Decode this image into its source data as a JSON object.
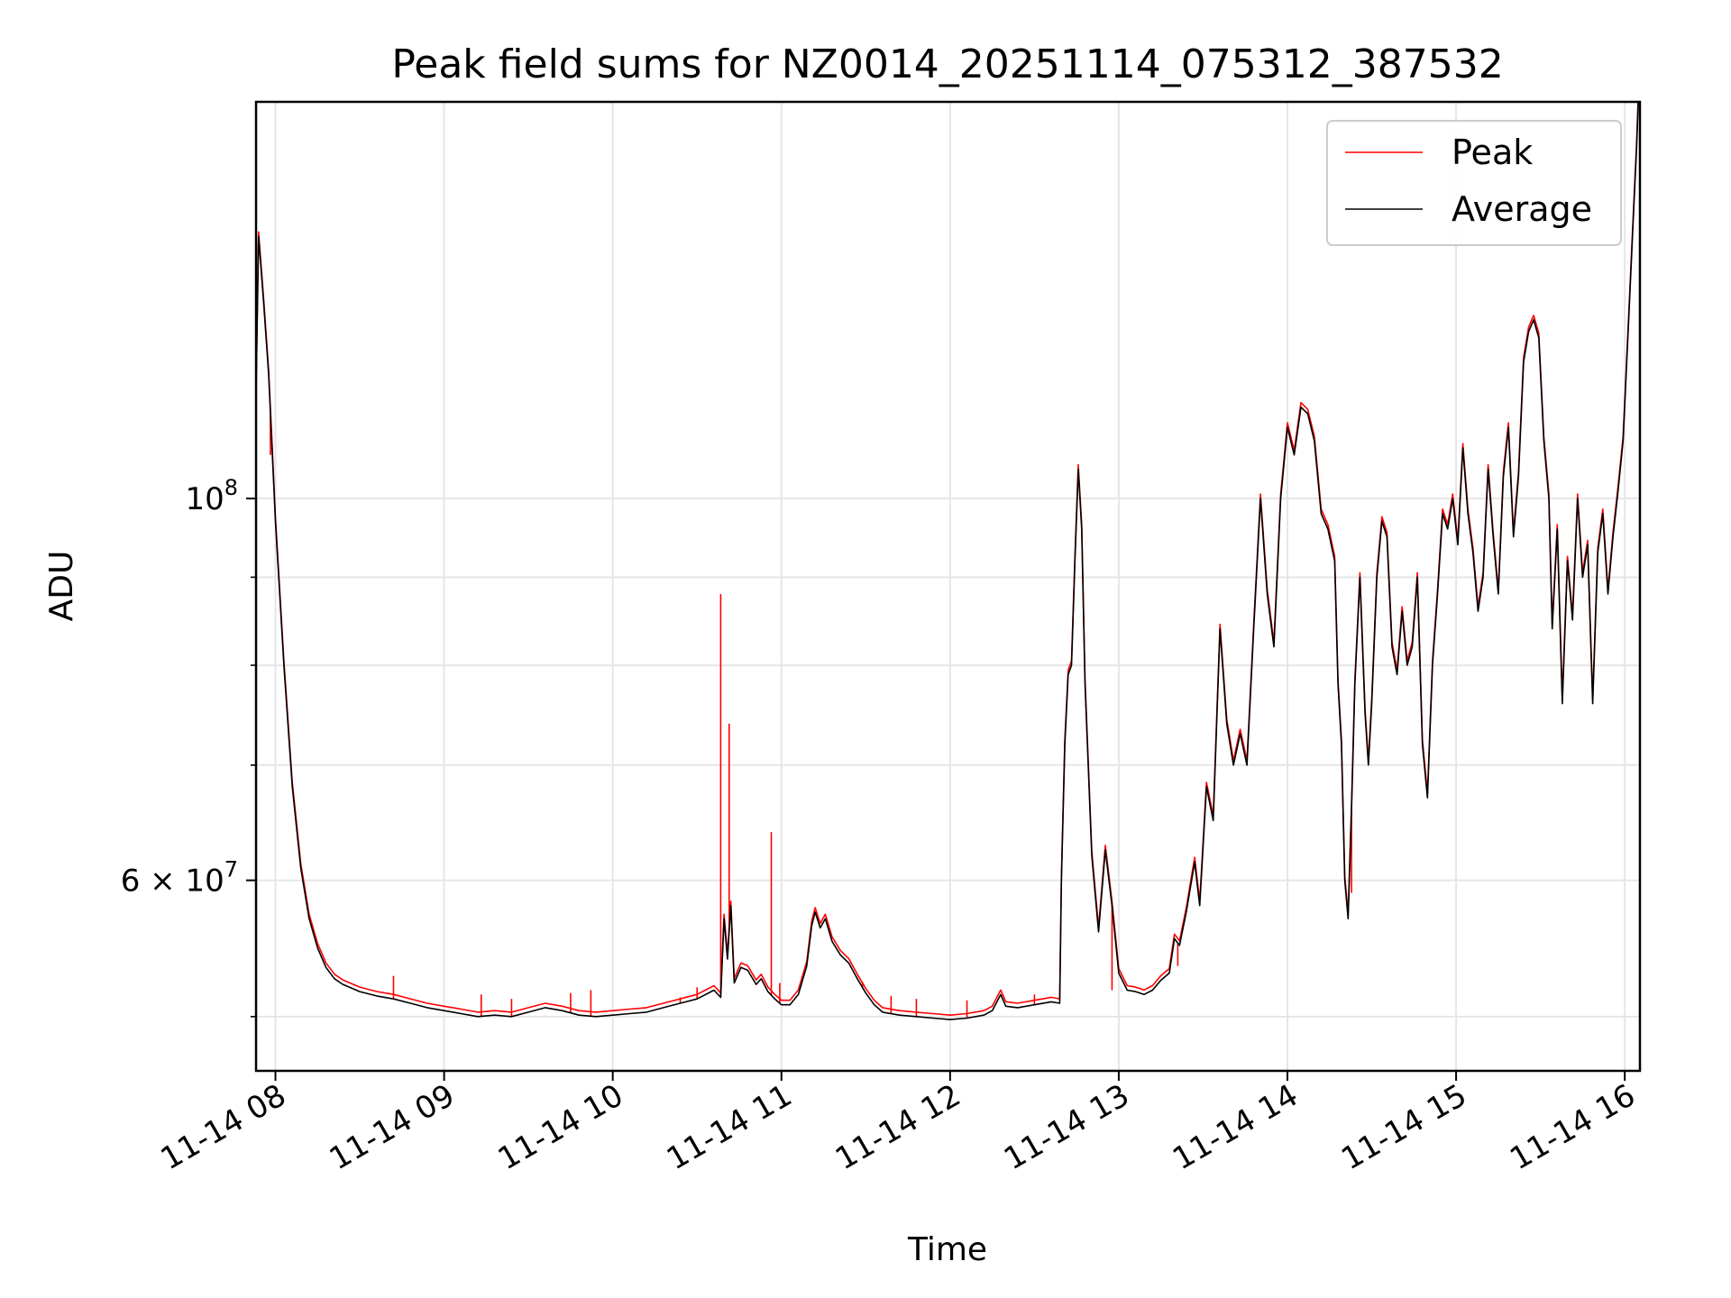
{
  "chart_data": {
    "type": "line",
    "title": "Peak field sums for NZ0014_20251114_075312_387532",
    "xlabel": "Time",
    "ylabel": "ADU",
    "yscale": "log",
    "ylim": [
      46500000,
      170000000
    ],
    "xlim_hours": [
      7.885,
      16.09
    ],
    "grid": true,
    "legend_position": "top-right",
    "x_ticks": [
      {
        "hour": 8,
        "label": "11-14 08"
      },
      {
        "hour": 9,
        "label": "11-14 09"
      },
      {
        "hour": 10,
        "label": "11-14 10"
      },
      {
        "hour": 11,
        "label": "11-14 11"
      },
      {
        "hour": 12,
        "label": "11-14 12"
      },
      {
        "hour": 13,
        "label": "11-14 13"
      },
      {
        "hour": 14,
        "label": "11-14 14"
      },
      {
        "hour": 15,
        "label": "11-14 15"
      },
      {
        "hour": 16,
        "label": "11-14 16"
      }
    ],
    "y_major_ticks": [
      {
        "value": 100000000,
        "base": "10",
        "exp": "8"
      },
      {
        "value": 60000000,
        "base": "6 × 10",
        "exp": "7"
      }
    ],
    "y_minor_ticks": [
      50000000,
      70000000,
      80000000,
      90000000
    ],
    "series": [
      {
        "name": "Average",
        "color": "#000000",
        "points": [
          [
            7.885,
            115000000
          ],
          [
            7.9,
            142000000
          ],
          [
            7.93,
            130000000
          ],
          [
            7.96,
            118000000
          ],
          [
            8.0,
            97000000
          ],
          [
            8.05,
            80000000
          ],
          [
            8.1,
            68000000
          ],
          [
            8.15,
            61000000
          ],
          [
            8.2,
            57000000
          ],
          [
            8.25,
            54800000
          ],
          [
            8.3,
            53400000
          ],
          [
            8.35,
            52600000
          ],
          [
            8.4,
            52200000
          ],
          [
            8.5,
            51700000
          ],
          [
            8.6,
            51400000
          ],
          [
            8.7,
            51200000
          ],
          [
            8.8,
            50900000
          ],
          [
            8.9,
            50600000
          ],
          [
            9.0,
            50400000
          ],
          [
            9.1,
            50200000
          ],
          [
            9.2,
            50000000
          ],
          [
            9.3,
            50100000
          ],
          [
            9.4,
            50000000
          ],
          [
            9.5,
            50300000
          ],
          [
            9.6,
            50600000
          ],
          [
            9.7,
            50400000
          ],
          [
            9.8,
            50100000
          ],
          [
            9.9,
            50000000
          ],
          [
            10.0,
            50100000
          ],
          [
            10.1,
            50200000
          ],
          [
            10.2,
            50300000
          ],
          [
            10.3,
            50600000
          ],
          [
            10.4,
            50900000
          ],
          [
            10.5,
            51200000
          ],
          [
            10.6,
            51800000
          ],
          [
            10.64,
            51300000
          ],
          [
            10.66,
            57000000
          ],
          [
            10.68,
            54000000
          ],
          [
            10.7,
            58000000
          ],
          [
            10.72,
            52300000
          ],
          [
            10.76,
            53400000
          ],
          [
            10.8,
            53200000
          ],
          [
            10.85,
            52200000
          ],
          [
            10.88,
            52600000
          ],
          [
            10.92,
            51700000
          ],
          [
            10.96,
            51200000
          ],
          [
            11.0,
            50800000
          ],
          [
            11.05,
            50800000
          ],
          [
            11.1,
            51500000
          ],
          [
            11.15,
            53500000
          ],
          [
            11.18,
            56500000
          ],
          [
            11.2,
            57500000
          ],
          [
            11.23,
            56300000
          ],
          [
            11.26,
            57000000
          ],
          [
            11.3,
            55300000
          ],
          [
            11.35,
            54300000
          ],
          [
            11.4,
            53700000
          ],
          [
            11.45,
            52600000
          ],
          [
            11.5,
            51600000
          ],
          [
            11.55,
            50800000
          ],
          [
            11.6,
            50300000
          ],
          [
            11.7,
            50100000
          ],
          [
            11.8,
            50000000
          ],
          [
            11.9,
            49900000
          ],
          [
            12.0,
            49800000
          ],
          [
            12.1,
            49900000
          ],
          [
            12.2,
            50100000
          ],
          [
            12.25,
            50400000
          ],
          [
            12.3,
            51500000
          ],
          [
            12.33,
            50700000
          ],
          [
            12.4,
            50600000
          ],
          [
            12.5,
            50800000
          ],
          [
            12.6,
            51000000
          ],
          [
            12.65,
            50900000
          ],
          [
            12.66,
            60000000
          ],
          [
            12.68,
            72000000
          ],
          [
            12.7,
            79000000
          ],
          [
            12.72,
            80000000
          ],
          [
            12.74,
            92000000
          ],
          [
            12.76,
            104000000
          ],
          [
            12.78,
            96000000
          ],
          [
            12.8,
            78000000
          ],
          [
            12.84,
            62000000
          ],
          [
            12.88,
            56000000
          ],
          [
            12.92,
            62500000
          ],
          [
            12.96,
            58000000
          ],
          [
            13.0,
            53000000
          ],
          [
            13.05,
            51800000
          ],
          [
            13.1,
            51700000
          ],
          [
            13.15,
            51500000
          ],
          [
            13.2,
            51800000
          ],
          [
            13.25,
            52500000
          ],
          [
            13.3,
            53000000
          ],
          [
            13.33,
            55500000
          ],
          [
            13.36,
            55000000
          ],
          [
            13.4,
            57500000
          ],
          [
            13.45,
            61500000
          ],
          [
            13.48,
            58000000
          ],
          [
            13.52,
            68000000
          ],
          [
            13.56,
            65000000
          ],
          [
            13.6,
            84000000
          ],
          [
            13.64,
            74000000
          ],
          [
            13.68,
            70000000
          ],
          [
            13.72,
            73000000
          ],
          [
            13.76,
            70000000
          ],
          [
            13.8,
            84000000
          ],
          [
            13.84,
            100000000
          ],
          [
            13.88,
            88000000
          ],
          [
            13.92,
            82000000
          ],
          [
            13.96,
            100000000
          ],
          [
            14.0,
            110000000
          ],
          [
            14.04,
            106000000
          ],
          [
            14.08,
            113000000
          ],
          [
            14.12,
            112000000
          ],
          [
            14.16,
            108000000
          ],
          [
            14.2,
            98000000
          ],
          [
            14.24,
            96000000
          ],
          [
            14.28,
            92000000
          ],
          [
            14.3,
            78000000
          ],
          [
            14.32,
            72000000
          ],
          [
            14.34,
            60000000
          ],
          [
            14.36,
            57000000
          ],
          [
            14.38,
            66000000
          ],
          [
            14.4,
            78000000
          ],
          [
            14.43,
            90000000
          ],
          [
            14.46,
            75000000
          ],
          [
            14.48,
            70000000
          ],
          [
            14.5,
            76000000
          ],
          [
            14.53,
            90000000
          ],
          [
            14.56,
            97000000
          ],
          [
            14.59,
            95000000
          ],
          [
            14.62,
            82000000
          ],
          [
            14.65,
            79000000
          ],
          [
            14.68,
            86000000
          ],
          [
            14.71,
            80000000
          ],
          [
            14.74,
            82000000
          ],
          [
            14.77,
            90000000
          ],
          [
            14.8,
            72000000
          ],
          [
            14.83,
            67000000
          ],
          [
            14.86,
            80000000
          ],
          [
            14.89,
            88000000
          ],
          [
            14.92,
            98000000
          ],
          [
            14.95,
            96000000
          ],
          [
            14.98,
            100000000
          ],
          [
            15.01,
            94000000
          ],
          [
            15.04,
            107000000
          ],
          [
            15.07,
            98000000
          ],
          [
            15.1,
            93000000
          ],
          [
            15.13,
            86000000
          ],
          [
            15.16,
            90000000
          ],
          [
            15.19,
            104000000
          ],
          [
            15.22,
            95000000
          ],
          [
            15.25,
            88000000
          ],
          [
            15.28,
            103000000
          ],
          [
            15.31,
            110000000
          ],
          [
            15.34,
            95000000
          ],
          [
            15.37,
            103000000
          ],
          [
            15.4,
            120000000
          ],
          [
            15.43,
            125000000
          ],
          [
            15.46,
            127000000
          ],
          [
            15.49,
            124000000
          ],
          [
            15.52,
            108000000
          ],
          [
            15.55,
            100000000
          ],
          [
            15.57,
            84000000
          ],
          [
            15.6,
            96000000
          ],
          [
            15.63,
            76000000
          ],
          [
            15.66,
            92000000
          ],
          [
            15.69,
            85000000
          ],
          [
            15.72,
            100000000
          ],
          [
            15.75,
            90000000
          ],
          [
            15.78,
            94000000
          ],
          [
            15.81,
            76000000
          ],
          [
            15.84,
            93000000
          ],
          [
            15.87,
            98000000
          ],
          [
            15.9,
            88000000
          ],
          [
            15.93,
            95000000
          ],
          [
            15.96,
            101000000
          ],
          [
            15.99,
            108000000
          ],
          [
            16.02,
            125000000
          ],
          [
            16.05,
            145000000
          ],
          [
            16.07,
            160000000
          ],
          [
            16.08,
            170000000
          ]
        ]
      },
      {
        "name": "Peak",
        "color": "#ff0000",
        "spikes": [
          [
            7.97,
            106000000
          ],
          [
            8.7,
            52800000
          ],
          [
            9.22,
            51500000
          ],
          [
            9.4,
            51200000
          ],
          [
            9.75,
            51600000
          ],
          [
            9.87,
            51800000
          ],
          [
            10.4,
            51300000
          ],
          [
            10.5,
            52000000
          ],
          [
            10.64,
            88000000
          ],
          [
            10.69,
            74000000
          ],
          [
            10.94,
            64000000
          ],
          [
            10.99,
            52300000
          ],
          [
            11.48,
            52400000
          ],
          [
            11.65,
            51400000
          ],
          [
            11.8,
            51200000
          ],
          [
            12.1,
            51100000
          ],
          [
            12.5,
            51500000
          ],
          [
            12.96,
            51800000
          ],
          [
            13.35,
            53500000
          ],
          [
            14.38,
            59000000
          ]
        ]
      }
    ]
  }
}
